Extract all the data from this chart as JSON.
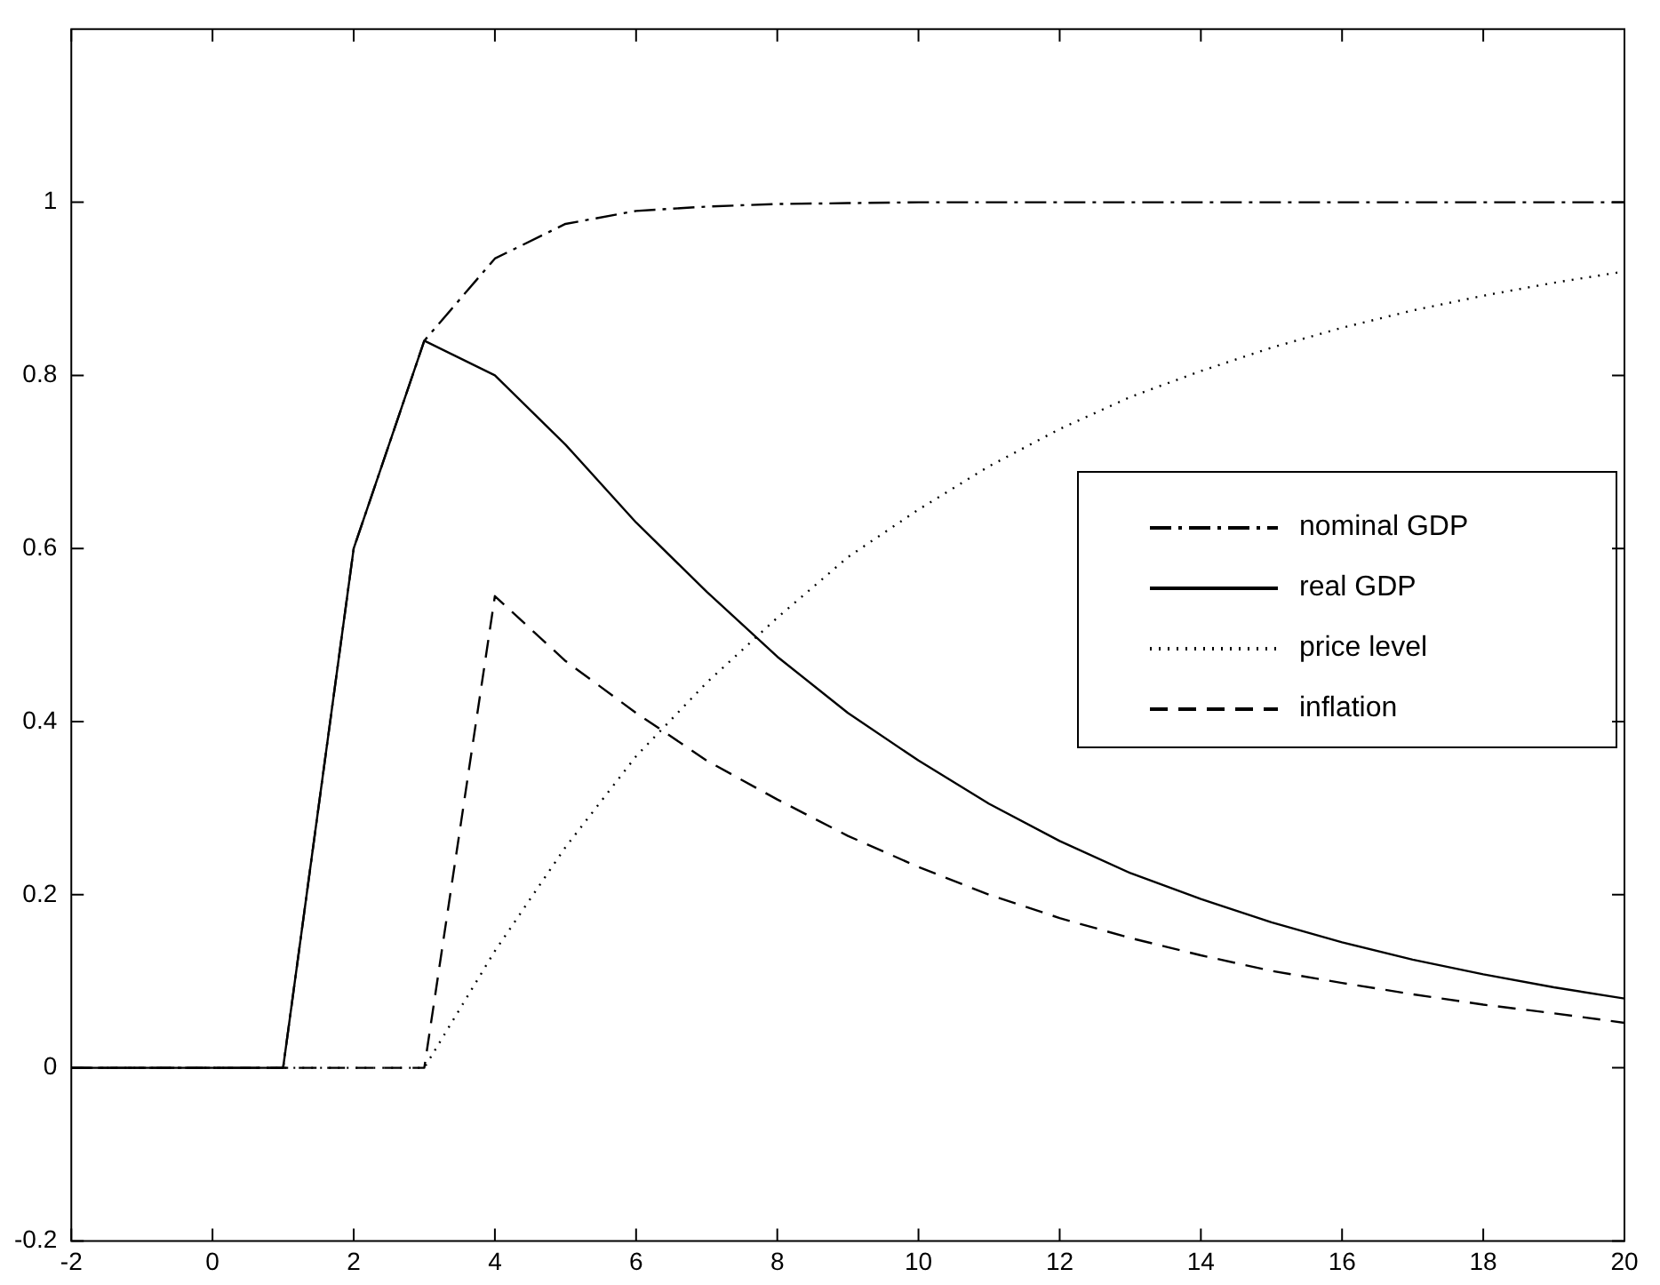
{
  "chart_data": {
    "type": "line",
    "x": [
      -2,
      -1,
      0,
      1,
      2,
      3,
      4,
      5,
      6,
      7,
      8,
      9,
      10,
      11,
      12,
      13,
      14,
      15,
      16,
      17,
      18,
      19,
      20
    ],
    "series": [
      {
        "name": "nominal GDP",
        "color": "#000000",
        "line_style": "dashdot",
        "values": [
          0,
          0,
          0,
          0,
          0.6,
          0.84,
          0.935,
          0.975,
          0.99,
          0.995,
          0.998,
          0.999,
          1,
          1,
          1,
          1,
          1,
          1,
          1,
          1,
          1,
          1,
          1
        ]
      },
      {
        "name": "real GDP",
        "color": "#000000",
        "line_style": "solid",
        "values": [
          0,
          0,
          0,
          0,
          0.6,
          0.84,
          0.8,
          0.72,
          0.63,
          0.55,
          0.475,
          0.41,
          0.355,
          0.305,
          0.262,
          0.225,
          0.195,
          0.168,
          0.145,
          0.125,
          0.108,
          0.093,
          0.08
        ]
      },
      {
        "name": "price level",
        "color": "#000000",
        "line_style": "dotted",
        "values": [
          0,
          0,
          0,
          0,
          0,
          0,
          0.135,
          0.255,
          0.36,
          0.445,
          0.52,
          0.59,
          0.645,
          0.695,
          0.738,
          0.775,
          0.805,
          0.832,
          0.855,
          0.875,
          0.892,
          0.907,
          0.92
        ]
      },
      {
        "name": "inflation",
        "color": "#000000",
        "line_style": "dashed",
        "values": [
          0,
          0,
          0,
          0,
          0,
          0,
          0.545,
          0.47,
          0.41,
          0.355,
          0.31,
          0.268,
          0.232,
          0.2,
          0.173,
          0.15,
          0.13,
          0.112,
          0.098,
          0.085,
          0.073,
          0.063,
          0.052
        ]
      }
    ],
    "xlim": [
      -2,
      20
    ],
    "xticks": [
      -2,
      0,
      2,
      4,
      6,
      8,
      10,
      12,
      14,
      16,
      18,
      20
    ],
    "ylim": [
      -0.2,
      1.2
    ],
    "yticks": [
      -0.2,
      0,
      0.2,
      0.4,
      0.6,
      0.8,
      1
    ],
    "grid": false,
    "legend": "right",
    "marker": "none"
  }
}
